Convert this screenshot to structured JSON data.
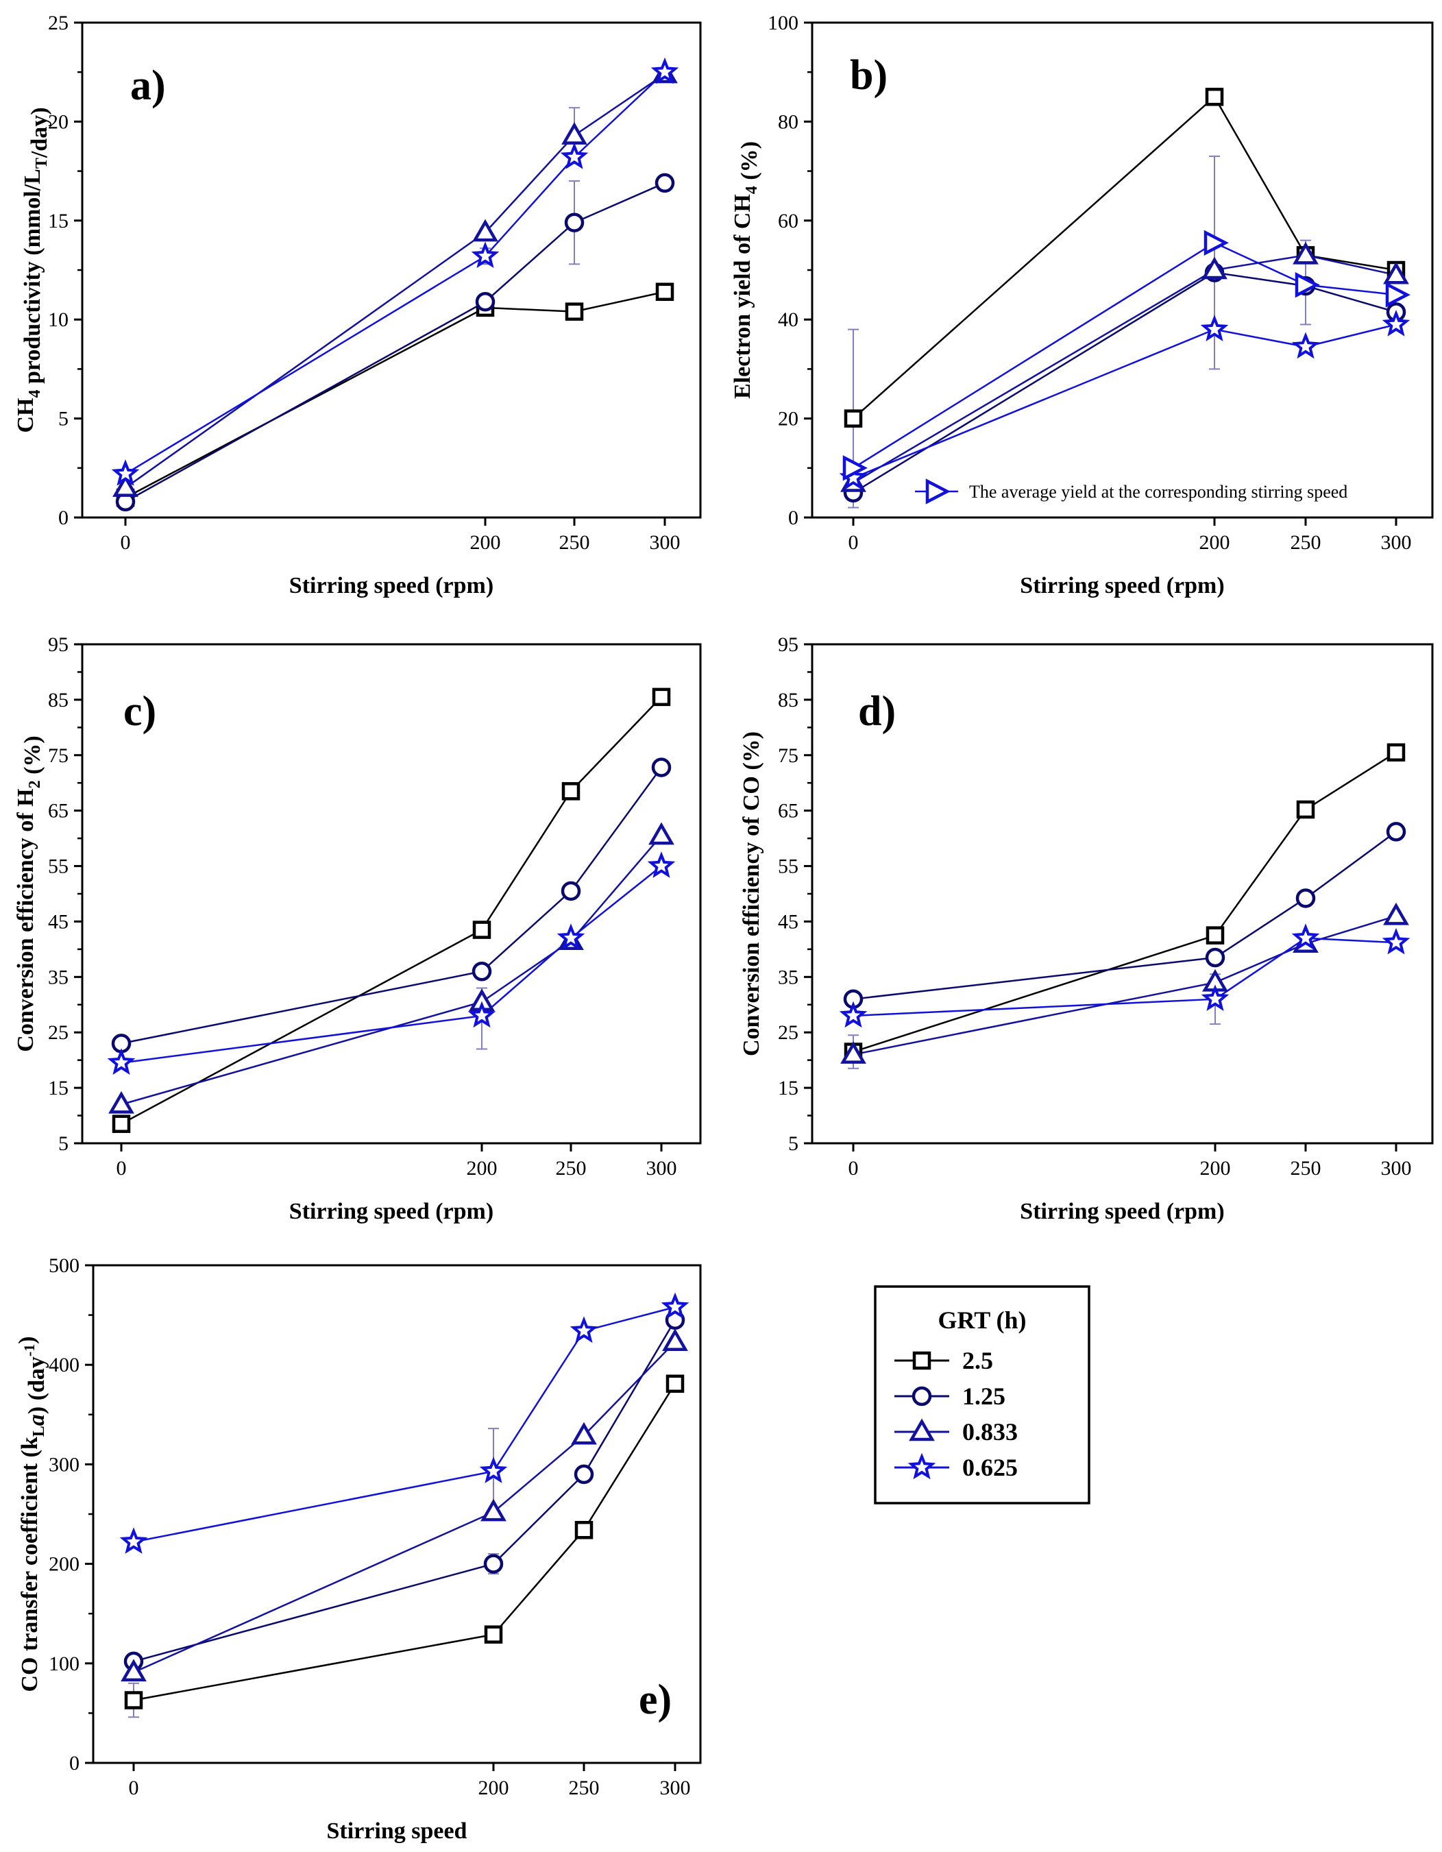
{
  "colors": {
    "series": [
      "#000000",
      "#0a0a6e",
      "#12129e",
      "#1111dd"
    ],
    "avg": "#1111dd",
    "errorbar": "#8080c0"
  },
  "legend": {
    "title": "GRT (h)",
    "entries": [
      {
        "label": "2.5",
        "marker": "square"
      },
      {
        "label": "1.25",
        "marker": "circle"
      },
      {
        "label": "0.833",
        "marker": "triangle"
      },
      {
        "label": "0.625",
        "marker": "star"
      }
    ]
  },
  "chart_data": [
    {
      "type": "line",
      "panel": "a)",
      "xlabel": "Stirring speed (rpm)",
      "ylabel": "CH4 productivity (mmol/LT/day)",
      "ylabel_parts": {
        "pre": "CH",
        "sub1": "4",
        "mid": " productivity (mmol/L",
        "sub2": "T",
        "post": "/day)"
      },
      "x": [
        0,
        200,
        250,
        300
      ],
      "xticks": [
        "0",
        "200",
        "250",
        "300"
      ],
      "ylim": [
        0,
        25
      ],
      "yticks": [
        0,
        5,
        10,
        15,
        20,
        25
      ],
      "series": [
        {
          "name": "2.5",
          "values": [
            1.0,
            10.6,
            10.4,
            11.4
          ]
        },
        {
          "name": "1.25",
          "values": [
            0.8,
            10.9,
            14.9,
            16.9
          ]
        },
        {
          "name": "0.833",
          "values": [
            1.5,
            14.4,
            19.3,
            22.4
          ]
        },
        {
          "name": "0.625",
          "values": [
            2.2,
            13.2,
            18.2,
            22.5
          ]
        }
      ],
      "error_bars": [
        {
          "series": "1.25",
          "x": 250,
          "low": 12.8,
          "high": 17.0
        },
        {
          "series": "0.833",
          "x": 250,
          "low": 17.9,
          "high": 20.7
        },
        {
          "series": "0.625",
          "x": 200,
          "low": 12.8,
          "high": 13.6
        }
      ]
    },
    {
      "type": "line",
      "panel": "b)",
      "xlabel": "Stirring speed (rpm)",
      "ylabel": "Electron yield of CH4 (%)",
      "ylabel_parts": {
        "pre": "Electron yield of CH",
        "sub1": "4",
        "mid": " (%)",
        "sub2": "",
        "post": ""
      },
      "x": [
        0,
        200,
        250,
        300
      ],
      "xticks": [
        "0",
        "200",
        "250",
        "300"
      ],
      "ylim": [
        0,
        100
      ],
      "yticks": [
        0,
        20,
        40,
        60,
        80,
        100
      ],
      "series": [
        {
          "name": "2.5",
          "values": [
            20.0,
            85.0,
            53.0,
            50.0
          ]
        },
        {
          "name": "1.25",
          "values": [
            5.0,
            49.5,
            46.8,
            41.5
          ]
        },
        {
          "name": "0.833",
          "values": [
            7.0,
            50.0,
            53.0,
            49.0
          ]
        },
        {
          "name": "0.625",
          "values": [
            8.0,
            38.0,
            34.5,
            39.0
          ]
        }
      ],
      "average": {
        "label": "The average yield at the corresponding stirring speed",
        "values": [
          10.0,
          55.5,
          47.0,
          45.0
        ]
      },
      "error_bars": [
        {
          "series": "avg",
          "x": 0,
          "low": 2.0,
          "high": 38.0
        },
        {
          "series": "avg",
          "x": 200,
          "low": 30.0,
          "high": 73.0
        },
        {
          "series": "avg",
          "x": 250,
          "low": 39.0,
          "high": 56.0
        }
      ]
    },
    {
      "type": "line",
      "panel": "c)",
      "xlabel": "Stirring speed (rpm)",
      "ylabel": "Conversion efficiency of H2 (%)",
      "ylabel_parts": {
        "pre": "Conversion efficiency of H",
        "sub1": "2",
        "mid": " (%)",
        "sub2": "",
        "post": ""
      },
      "x": [
        0,
        200,
        250,
        300
      ],
      "xticks": [
        "0",
        "200",
        "250",
        "300"
      ],
      "ylim": [
        5,
        95
      ],
      "yticks": [
        5,
        15,
        25,
        35,
        45,
        55,
        65,
        75,
        85,
        95
      ],
      "series": [
        {
          "name": "2.5",
          "values": [
            8.5,
            43.5,
            68.5,
            85.5
          ]
        },
        {
          "name": "1.25",
          "values": [
            23.0,
            36.0,
            50.5,
            72.8
          ]
        },
        {
          "name": "0.833",
          "values": [
            12.0,
            30.5,
            41.5,
            60.5
          ]
        },
        {
          "name": "0.625",
          "values": [
            19.5,
            28.0,
            42.0,
            55.0
          ]
        }
      ],
      "error_bars": [
        {
          "series": "0.625",
          "x": 200,
          "low": 22.0,
          "high": 33.0
        }
      ]
    },
    {
      "type": "line",
      "panel": "d)",
      "xlabel": "Stirring speed (rpm)",
      "ylabel": "Conversion efficiency of CO (%)",
      "ylabel_parts": {
        "pre": "Conversion efficiency of CO (%)",
        "sub1": "",
        "mid": "",
        "sub2": "",
        "post": ""
      },
      "x": [
        0,
        200,
        250,
        300
      ],
      "xticks": [
        "0",
        "200",
        "250",
        "300"
      ],
      "ylim": [
        5,
        95
      ],
      "yticks": [
        5,
        15,
        25,
        35,
        45,
        55,
        65,
        75,
        85,
        95
      ],
      "series": [
        {
          "name": "2.5",
          "values": [
            21.5,
            42.5,
            65.2,
            75.5
          ]
        },
        {
          "name": "1.25",
          "values": [
            31.0,
            38.5,
            49.2,
            61.2
          ]
        },
        {
          "name": "0.833",
          "values": [
            21.0,
            34.0,
            41.0,
            46.0
          ]
        },
        {
          "name": "0.625",
          "values": [
            28.0,
            31.0,
            42.0,
            41.2
          ]
        }
      ],
      "error_bars": [
        {
          "series": "0.625",
          "x": 200,
          "low": 26.5,
          "high": 35.5
        },
        {
          "series": "2.5",
          "x": 0,
          "low": 18.5,
          "high": 24.5
        }
      ]
    },
    {
      "type": "line",
      "panel": "e)",
      "xlabel": "Stirring speed",
      "ylabel": "CO transfer coefficient (kLa) (day-1)",
      "ylabel_parts": {
        "pre": "CO transfer coefficient (k",
        "sub1": "L",
        "mid": "a) (day",
        "sup": "-1",
        "post": ")"
      },
      "x": [
        0,
        200,
        250,
        300
      ],
      "xticks": [
        "0",
        "200",
        "250",
        "300"
      ],
      "ylim": [
        0,
        500
      ],
      "yticks": [
        0,
        100,
        200,
        300,
        400,
        500
      ],
      "series": [
        {
          "name": "2.5",
          "values": [
            63,
            129,
            234,
            381
          ]
        },
        {
          "name": "1.25",
          "values": [
            102,
            200,
            290,
            445
          ]
        },
        {
          "name": "0.833",
          "values": [
            91,
            252,
            329,
            423
          ]
        },
        {
          "name": "0.625",
          "values": [
            222,
            293,
            434,
            458
          ]
        }
      ],
      "error_bars": [
        {
          "series": "0.625",
          "x": 200,
          "low": 250,
          "high": 336
        },
        {
          "series": "2.5",
          "x": 0,
          "low": 46,
          "high": 80
        },
        {
          "series": "1.25",
          "x": 200,
          "low": 190,
          "high": 210
        }
      ]
    }
  ]
}
